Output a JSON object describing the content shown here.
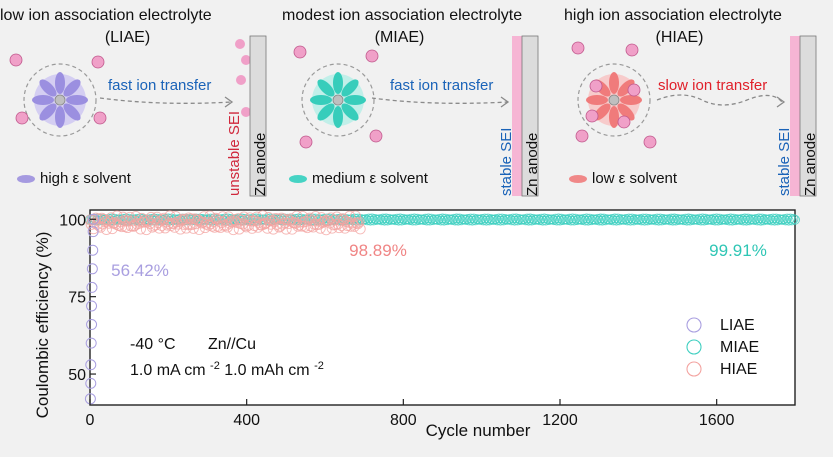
{
  "panels": [
    {
      "title": "low ion association electrolyte",
      "abbr": "(LIAE)",
      "transfer": "fast ion transfer",
      "transfer_color": "#1a63b8",
      "sei": "unstable SEI",
      "sei_color": "#d0283c",
      "anode": "Zn anode",
      "solvent": "high ε solvent",
      "solvent_color": "#a59ae0",
      "petal_color": "#9b8fe0",
      "halo_color": "#cfc8f2"
    },
    {
      "title": "modest ion association electrolyte",
      "abbr": "(MIAE)",
      "transfer": "fast ion transfer",
      "transfer_color": "#1a63b8",
      "sei": "stable SEI",
      "sei_color": "#1a63b8",
      "anode": "Zn anode",
      "solvent": "medium ε solvent",
      "solvent_color": "#46d3c4",
      "petal_color": "#37cdbb",
      "halo_color": "#b9efe8"
    },
    {
      "title": "high ion association electrolyte",
      "abbr": "(HIAE)",
      "transfer": "slow ion transfer",
      "transfer_color": "#e0202a",
      "sei": "stable SEI",
      "sei_color": "#1a63b8",
      "anode": "Zn anode",
      "solvent": "low ε solvent",
      "solvent_color": "#f08888",
      "petal_color": "#f07b7b",
      "halo_color": "#f8c4c4"
    }
  ],
  "chart_data": {
    "type": "scatter",
    "xlabel": "Cycle number",
    "ylabel": "Coulombic efficiency (%)",
    "xlim": [
      0,
      1800
    ],
    "ylim": [
      40,
      103
    ],
    "xticks": [
      "0",
      "400",
      "800",
      "1200",
      "1600"
    ],
    "xtick_values": [
      0,
      400,
      800,
      1200,
      1600
    ],
    "yticks": [
      "50",
      "75",
      "100"
    ],
    "ytick_values": [
      50,
      75,
      100
    ],
    "series": [
      {
        "name": "LIAE",
        "color": "#a99fe0",
        "cycles_max": 9,
        "points": [
          [
            1,
            42
          ],
          [
            2,
            47
          ],
          [
            2,
            53
          ],
          [
            3,
            60
          ],
          [
            4,
            66
          ],
          [
            4,
            72
          ],
          [
            5,
            78
          ],
          [
            6,
            84
          ],
          [
            7,
            90
          ],
          [
            8,
            96
          ],
          [
            9,
            100
          ]
        ]
      },
      {
        "name": "MIAE",
        "color": "#3fcfc0",
        "cycles_max": 1800,
        "mean": 99.91
      },
      {
        "name": "HIAE",
        "color": "#f3a3a0",
        "cycles_max": 690,
        "mean": 98.89
      }
    ],
    "annotations": [
      {
        "text": "56.42%",
        "color": "#a99fe0"
      },
      {
        "text": "98.89%",
        "color": "#f08585"
      },
      {
        "text": "99.91%",
        "color": "#2fc6b5"
      }
    ],
    "conditions": {
      "line1_a": "-40 °C",
      "line1_b": "Zn//Cu",
      "line2_a": "1.0 mA cm",
      "line2_a_sup": "-2",
      "line2_b": " 1.0 mAh cm",
      "line2_b_sup": "-2"
    },
    "legend_position": "bottom-right"
  }
}
